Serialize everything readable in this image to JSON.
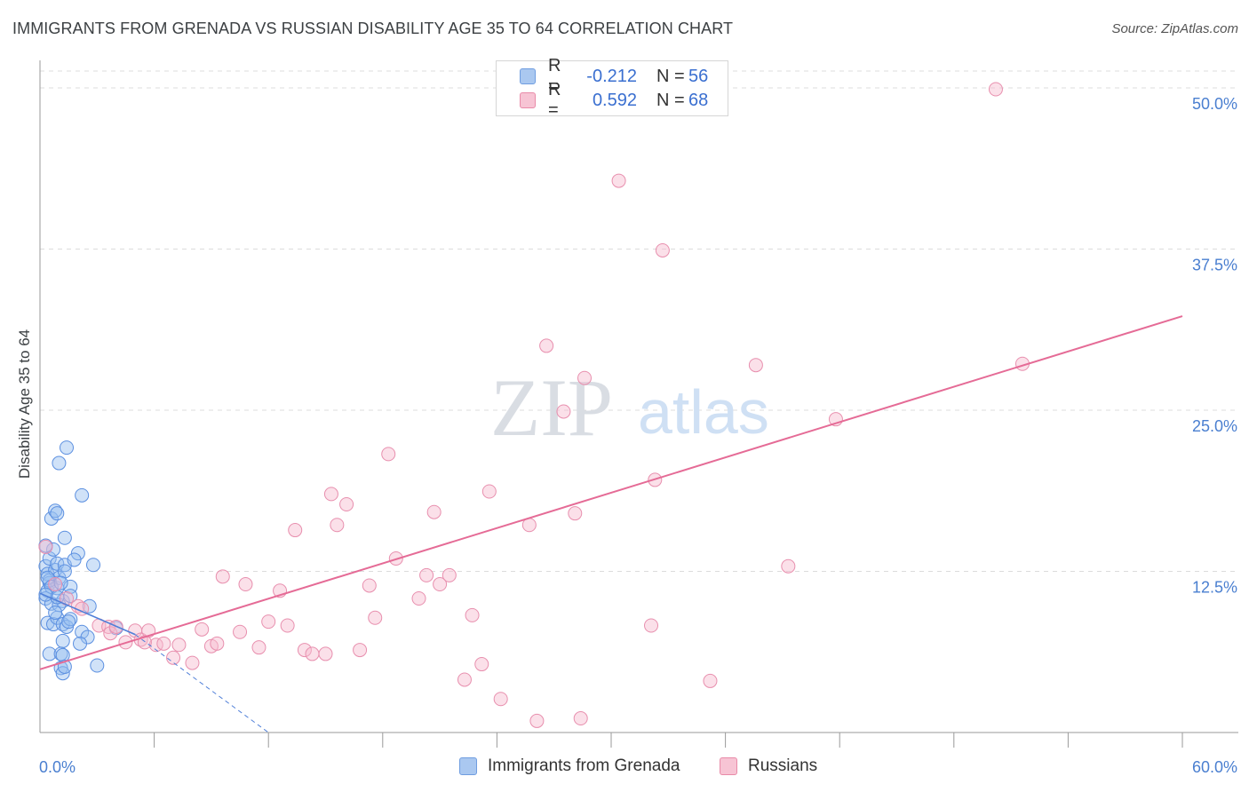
{
  "header": {
    "title": "IMMIGRANTS FROM GRENADA VS RUSSIAN DISABILITY AGE 35 TO 64 CORRELATION CHART",
    "source": "Source: ZipAtlas.com"
  },
  "watermark": {
    "zip": "ZIP",
    "atlas": "atlas"
  },
  "legend": {
    "series": [
      {
        "r_label": "R =",
        "r_value": "-0.212",
        "n_label": "N =",
        "n_value": "56",
        "fill": "#aac8f0",
        "stroke": "#6f9de0"
      },
      {
        "r_label": "R =",
        "r_value": "0.592",
        "n_label": "N =",
        "n_value": "68",
        "fill": "#f7c4d4",
        "stroke": "#e98aa8"
      }
    ]
  },
  "bottom_legend": [
    {
      "label": "Immigrants from Grenada",
      "fill": "#aac8f0",
      "stroke": "#6f9de0"
    },
    {
      "label": "Russians",
      "fill": "#f7c4d4",
      "stroke": "#e98aa8"
    }
  ],
  "chart_data": {
    "type": "scatter",
    "title": "IMMIGRANTS FROM GRENADA VS RUSSIAN DISABILITY AGE 35 TO 64 CORRELATION CHART",
    "xlabel": "",
    "ylabel": "Disability Age 35 to 64",
    "xlim": [
      0,
      60
    ],
    "ylim": [
      0,
      52
    ],
    "x_tick_labels": [
      "0.0%",
      "60.0%"
    ],
    "y_ticks": [
      12.5,
      25.0,
      37.5,
      50.0
    ],
    "y_tick_labels": [
      "12.5%",
      "25.0%",
      "37.5%",
      "50.0%"
    ],
    "grid": "dashed-horizontal",
    "colors": {
      "blue": "#4f7fd8",
      "pink": "#e56b96"
    },
    "series": [
      {
        "name": "Immigrants from Grenada",
        "color": "#4f7fd8",
        "trend": {
          "x": [
            0,
            5.0
          ],
          "y": [
            10.8,
            7.6
          ]
        },
        "trend_extension": {
          "x": [
            5.0,
            12.0
          ],
          "y": [
            7.6,
            0.0
          ]
        },
        "points": [
          [
            0.3,
            12.9
          ],
          [
            0.4,
            12.3
          ],
          [
            0.5,
            11.6
          ],
          [
            0.4,
            11.0
          ],
          [
            0.3,
            10.4
          ],
          [
            0.6,
            10.0
          ],
          [
            0.8,
            12.6
          ],
          [
            0.9,
            11.2
          ],
          [
            1.0,
            12.0
          ],
          [
            1.2,
            10.2
          ],
          [
            0.5,
            13.5
          ],
          [
            0.7,
            14.2
          ],
          [
            0.3,
            14.5
          ],
          [
            0.9,
            13.1
          ],
          [
            1.3,
            13.0
          ],
          [
            1.6,
            11.3
          ],
          [
            0.6,
            16.6
          ],
          [
            0.8,
            17.2
          ],
          [
            0.9,
            17.0
          ],
          [
            1.3,
            15.1
          ],
          [
            1.0,
            20.9
          ],
          [
            1.4,
            22.1
          ],
          [
            2.2,
            18.4
          ],
          [
            0.4,
            8.5
          ],
          [
            0.7,
            8.4
          ],
          [
            0.9,
            8.9
          ],
          [
            1.2,
            8.4
          ],
          [
            1.4,
            8.2
          ],
          [
            1.6,
            8.8
          ],
          [
            2.2,
            7.8
          ],
          [
            2.5,
            7.4
          ],
          [
            1.2,
            7.1
          ],
          [
            0.5,
            6.1
          ],
          [
            1.1,
            6.1
          ],
          [
            1.2,
            6.0
          ],
          [
            1.1,
            5.0
          ],
          [
            1.2,
            4.6
          ],
          [
            1.3,
            5.1
          ],
          [
            3.0,
            5.2
          ],
          [
            4.0,
            8.1
          ],
          [
            2.0,
            13.9
          ],
          [
            2.8,
            13.0
          ],
          [
            1.8,
            13.4
          ],
          [
            1.3,
            12.5
          ],
          [
            1.0,
            9.9
          ],
          [
            1.6,
            10.6
          ],
          [
            2.6,
            9.8
          ],
          [
            0.5,
            11.8
          ],
          [
            0.8,
            9.3
          ],
          [
            1.5,
            8.6
          ],
          [
            0.4,
            12.0
          ],
          [
            0.6,
            11.3
          ],
          [
            1.1,
            11.6
          ],
          [
            0.9,
            10.5
          ],
          [
            2.1,
            6.9
          ],
          [
            0.3,
            10.7
          ]
        ]
      },
      {
        "name": "Russians",
        "color": "#e56b96",
        "trend": {
          "x": [
            0,
            60
          ],
          "y": [
            4.9,
            32.3
          ]
        },
        "points": [
          [
            0.3,
            14.4
          ],
          [
            0.8,
            11.5
          ],
          [
            1.4,
            10.4
          ],
          [
            2.0,
            9.8
          ],
          [
            2.2,
            9.6
          ],
          [
            3.1,
            8.3
          ],
          [
            3.6,
            8.2
          ],
          [
            3.7,
            7.7
          ],
          [
            4.0,
            8.2
          ],
          [
            4.5,
            7.0
          ],
          [
            5.0,
            7.9
          ],
          [
            5.3,
            7.2
          ],
          [
            5.7,
            7.9
          ],
          [
            6.1,
            6.8
          ],
          [
            6.5,
            6.9
          ],
          [
            7.0,
            5.8
          ],
          [
            7.3,
            6.8
          ],
          [
            8.0,
            5.4
          ],
          [
            8.5,
            8.0
          ],
          [
            9.0,
            6.7
          ],
          [
            9.3,
            6.9
          ],
          [
            9.6,
            12.1
          ],
          [
            10.5,
            7.8
          ],
          [
            10.8,
            11.5
          ],
          [
            11.5,
            6.6
          ],
          [
            12.0,
            8.6
          ],
          [
            12.6,
            11.0
          ],
          [
            13.0,
            8.3
          ],
          [
            13.4,
            15.7
          ],
          [
            13.9,
            6.4
          ],
          [
            14.3,
            6.1
          ],
          [
            15.0,
            6.1
          ],
          [
            15.3,
            18.5
          ],
          [
            15.6,
            16.1
          ],
          [
            16.1,
            17.7
          ],
          [
            16.8,
            6.4
          ],
          [
            17.3,
            11.4
          ],
          [
            17.6,
            8.9
          ],
          [
            18.3,
            21.6
          ],
          [
            18.7,
            13.5
          ],
          [
            19.9,
            10.4
          ],
          [
            20.3,
            12.2
          ],
          [
            20.7,
            17.1
          ],
          [
            21.0,
            11.5
          ],
          [
            21.5,
            12.2
          ],
          [
            22.3,
            4.1
          ],
          [
            22.7,
            9.1
          ],
          [
            23.2,
            5.3
          ],
          [
            23.6,
            18.7
          ],
          [
            24.2,
            2.6
          ],
          [
            25.7,
            16.1
          ],
          [
            26.1,
            0.9
          ],
          [
            26.6,
            30.0
          ],
          [
            27.5,
            24.9
          ],
          [
            28.1,
            17.0
          ],
          [
            28.4,
            1.1
          ],
          [
            28.6,
            27.5
          ],
          [
            30.4,
            42.8
          ],
          [
            32.1,
            8.3
          ],
          [
            32.3,
            19.6
          ],
          [
            32.7,
            37.4
          ],
          [
            35.2,
            4.0
          ],
          [
            37.6,
            28.5
          ],
          [
            39.3,
            12.9
          ],
          [
            41.8,
            24.3
          ],
          [
            50.2,
            49.9
          ],
          [
            51.6,
            28.6
          ],
          [
            5.5,
            7.0
          ]
        ]
      }
    ]
  }
}
